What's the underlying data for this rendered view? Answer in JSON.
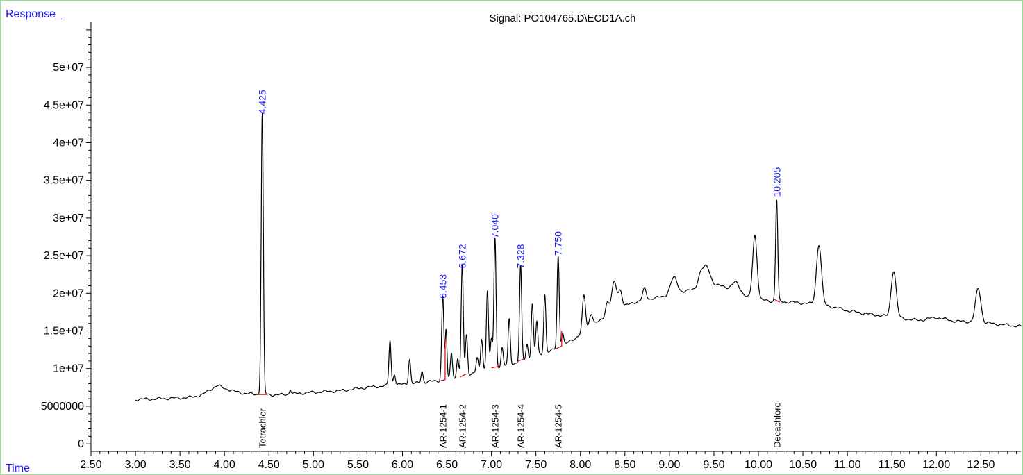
{
  "chart_data": {
    "type": "line",
    "title": "Signal: PO104765.D\\ECD1A.ch",
    "ylabel": "Response_",
    "xlabel": "Time",
    "xlim": [
      2.5,
      12.95
    ],
    "ylim": [
      -1000000,
      56000000
    ],
    "x_ticks": [
      "2.50",
      "3.00",
      "3.50",
      "4.00",
      "4.50",
      "5.00",
      "5.50",
      "6.00",
      "6.50",
      "7.00",
      "7.50",
      "8.00",
      "8.50",
      "9.00",
      "9.50",
      "10.00",
      "10.50",
      "11.00",
      "11.50",
      "12.00",
      "12.50"
    ],
    "y_ticks": [
      "0",
      "5000000",
      "1e+07",
      "1.5e+07",
      "2e+07",
      "2.5e+07",
      "3e+07",
      "3.5e+07",
      "4e+07",
      "4.5e+07",
      "5e+07"
    ],
    "colors": {
      "trace": "#000000",
      "retention_labels": "#1a1aff",
      "integration_baseline": "#e00000",
      "axes": "#000000",
      "frame": "#8fe28f"
    },
    "baseline_points": [
      [
        3.0,
        5900000
      ],
      [
        3.3,
        6000000
      ],
      [
        3.6,
        6150000
      ],
      [
        3.75,
        6500000
      ],
      [
        3.85,
        7300000
      ],
      [
        3.92,
        7750000
      ],
      [
        4.0,
        7400000
      ],
      [
        4.1,
        7000000
      ],
      [
        4.25,
        6650000
      ],
      [
        4.6,
        6500000
      ],
      [
        5.0,
        6850000
      ],
      [
        5.3,
        7050000
      ],
      [
        5.6,
        7500000
      ],
      [
        5.8,
        7700000
      ],
      [
        6.0,
        7900000
      ],
      [
        6.2,
        8100000
      ],
      [
        6.4,
        8400000
      ],
      [
        6.6,
        8700000
      ],
      [
        6.8,
        9400000
      ],
      [
        7.0,
        10000000
      ],
      [
        7.2,
        10500000
      ],
      [
        7.4,
        11200000
      ],
      [
        7.6,
        12000000
      ],
      [
        7.8,
        13000000
      ],
      [
        8.0,
        14500000
      ],
      [
        8.2,
        16200000
      ],
      [
        8.4,
        17800000
      ],
      [
        8.6,
        18800000
      ],
      [
        8.8,
        19300000
      ],
      [
        9.0,
        19700000
      ],
      [
        9.2,
        20300000
      ],
      [
        9.4,
        21000000
      ],
      [
        9.6,
        21000000
      ],
      [
        9.8,
        20000000
      ],
      [
        9.9,
        19300000
      ],
      [
        10.1,
        19000000
      ],
      [
        10.4,
        18800000
      ],
      [
        10.6,
        18600000
      ],
      [
        10.8,
        18300000
      ],
      [
        11.0,
        17700000
      ],
      [
        11.2,
        17300000
      ],
      [
        11.4,
        17000000
      ],
      [
        11.6,
        16700000
      ],
      [
        11.8,
        16400000
      ],
      [
        12.0,
        16800000
      ],
      [
        12.2,
        16300000
      ],
      [
        12.4,
        16200000
      ],
      [
        12.6,
        16000000
      ],
      [
        12.95,
        15600000
      ]
    ],
    "peaks": [
      [
        4.425,
        37300000,
        0.012
      ],
      [
        4.74,
        600000,
        0.01
      ],
      [
        5.86,
        6000000,
        0.012
      ],
      [
        5.91,
        1500000,
        0.012
      ],
      [
        6.08,
        3300000,
        0.012
      ],
      [
        6.22,
        1500000,
        0.012
      ],
      [
        6.453,
        11200000,
        0.012
      ],
      [
        6.49,
        6500000,
        0.01
      ],
      [
        6.55,
        3500000,
        0.012
      ],
      [
        6.62,
        2600000,
        0.012
      ],
      [
        6.672,
        14800000,
        0.012
      ],
      [
        6.72,
        5400000,
        0.012
      ],
      [
        6.84,
        1800000,
        0.012
      ],
      [
        6.89,
        4300000,
        0.012
      ],
      [
        6.955,
        10600000,
        0.012
      ],
      [
        7.0,
        3800000,
        0.012
      ],
      [
        7.04,
        17300000,
        0.012
      ],
      [
        7.12,
        2500000,
        0.012
      ],
      [
        7.2,
        6000000,
        0.012
      ],
      [
        7.328,
        12700000,
        0.012
      ],
      [
        7.4,
        2000000,
        0.012
      ],
      [
        7.46,
        7200000,
        0.012
      ],
      [
        7.51,
        4600000,
        0.012
      ],
      [
        7.6,
        7900000,
        0.012
      ],
      [
        7.75,
        12200000,
        0.012
      ],
      [
        7.8,
        1700000,
        0.012
      ],
      [
        8.04,
        4800000,
        0.018
      ],
      [
        8.12,
        1800000,
        0.02
      ],
      [
        8.3,
        1700000,
        0.02
      ],
      [
        8.38,
        3800000,
        0.03
      ],
      [
        8.45,
        2200000,
        0.02
      ],
      [
        8.72,
        1500000,
        0.02
      ],
      [
        9.05,
        2200000,
        0.04
      ],
      [
        9.35,
        1500000,
        0.03
      ],
      [
        9.42,
        2500000,
        0.04
      ],
      [
        9.75,
        1200000,
        0.04
      ],
      [
        9.96,
        8500000,
        0.025
      ],
      [
        10.205,
        13500000,
        0.012
      ],
      [
        10.68,
        8000000,
        0.028
      ],
      [
        11.52,
        6200000,
        0.028
      ],
      [
        12.47,
        4500000,
        0.03
      ]
    ],
    "rt_labels": [
      "4.425",
      "6.453",
      "6.672",
      "7.040",
      "7.328",
      "7.750",
      "10.205"
    ],
    "rt_positions": [
      4.425,
      6.453,
      6.672,
      7.04,
      7.328,
      7.75,
      10.205
    ],
    "rt_label_y": [
      43800000,
      19300000,
      23300000,
      27300000,
      23300000,
      25000000,
      32800000
    ],
    "integrations": [
      {
        "x": [
          4.37,
          4.48
        ],
        "y": [
          6550000,
          6550000
        ]
      },
      {
        "x": [
          6.43,
          6.48
        ],
        "y": [
          8400000,
          8500000
        ]
      },
      {
        "x": [
          6.48,
          6.48
        ],
        "y": [
          8500000,
          13900000
        ]
      },
      {
        "x": [
          6.65,
          6.72
        ],
        "y": [
          8900000,
          9300000
        ]
      },
      {
        "x": [
          7.0,
          7.09
        ],
        "y": [
          10100000,
          10300000
        ]
      },
      {
        "x": [
          7.3,
          7.37
        ],
        "y": [
          11000000,
          11300000
        ]
      },
      {
        "x": [
          7.72,
          7.79
        ],
        "y": [
          12600000,
          13000000
        ]
      },
      {
        "x": [
          7.79,
          7.79
        ],
        "y": [
          13000000,
          15000000
        ]
      },
      {
        "x": [
          10.18,
          10.24
        ],
        "y": [
          19200000,
          18800000
        ]
      }
    ],
    "compounds": [
      {
        "name": "Tetrachlor",
        "x": 4.425
      },
      {
        "name": "AR-1254-1",
        "x": 6.453
      },
      {
        "name": "AR-1254-2",
        "x": 6.672
      },
      {
        "name": "AR-1254-3",
        "x": 7.04
      },
      {
        "name": "AR-1254-4",
        "x": 7.328
      },
      {
        "name": "AR-1254-5",
        "x": 7.75
      },
      {
        "name": "Decachloro",
        "x": 10.205
      }
    ]
  }
}
